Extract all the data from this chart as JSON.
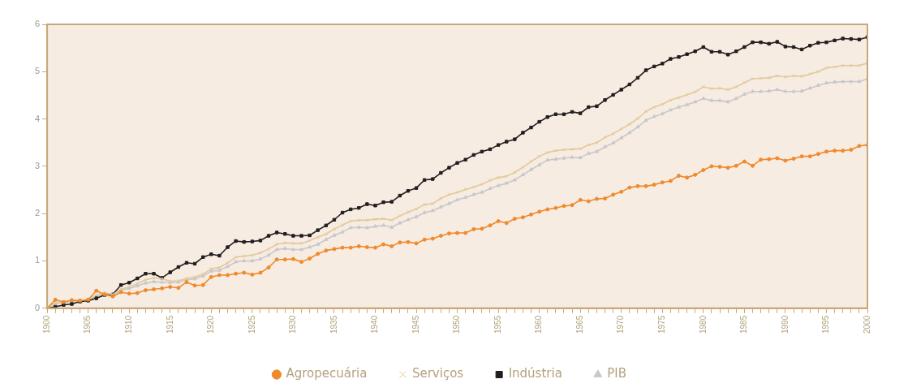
{
  "chart_data": {
    "type": "line",
    "legend": "bottom",
    "grid": false,
    "x": [
      1900,
      1901,
      1902,
      1903,
      1904,
      1905,
      1906,
      1907,
      1908,
      1909,
      1910,
      1911,
      1912,
      1913,
      1914,
      1915,
      1916,
      1917,
      1918,
      1919,
      1920,
      1921,
      1922,
      1923,
      1924,
      1925,
      1926,
      1927,
      1928,
      1929,
      1930,
      1931,
      1932,
      1933,
      1934,
      1935,
      1936,
      1937,
      1938,
      1939,
      1940,
      1941,
      1942,
      1943,
      1944,
      1945,
      1946,
      1947,
      1948,
      1949,
      1950,
      1951,
      1952,
      1953,
      1954,
      1955,
      1956,
      1957,
      1958,
      1959,
      1960,
      1961,
      1962,
      1963,
      1964,
      1965,
      1966,
      1967,
      1968,
      1969,
      1970,
      1971,
      1972,
      1973,
      1974,
      1975,
      1976,
      1977,
      1978,
      1979,
      1980,
      1981,
      1982,
      1983,
      1984,
      1985,
      1986,
      1987,
      1988,
      1989,
      1990,
      1991,
      1992,
      1993,
      1994,
      1995,
      1996,
      1997,
      1998,
      1999,
      2000
    ],
    "xlim": [
      1900,
      2000
    ],
    "xticks": [
      1900,
      {
        "value": 1901,
        "label": null
      },
      {
        "value": 1902,
        "label": null
      },
      {
        "value": 1903,
        "label": null
      },
      {
        "value": 1904,
        "label": null
      },
      1905,
      {
        "value": 1906,
        "label": null
      },
      {
        "value": 1907,
        "label": null
      },
      {
        "value": 1908,
        "label": null
      },
      {
        "value": 1909,
        "label": null
      },
      1910,
      {
        "value": 1911,
        "label": null
      },
      {
        "value": 1912,
        "label": null
      },
      {
        "value": 1913,
        "label": null
      },
      {
        "value": 1914,
        "label": null
      },
      1915,
      {
        "value": 1916,
        "label": null
      },
      {
        "value": 1917,
        "label": null
      },
      {
        "value": 1918,
        "label": null
      },
      {
        "value": 1919,
        "label": null
      },
      1920,
      {
        "value": 1921,
        "label": null
      },
      {
        "value": 1922,
        "label": null
      },
      {
        "value": 1923,
        "label": null
      },
      {
        "value": 1924,
        "label": null
      },
      1925,
      {
        "value": 1926,
        "label": null
      },
      {
        "value": 1927,
        "label": null
      },
      {
        "value": 1928,
        "label": null
      },
      {
        "value": 1929,
        "label": null
      },
      1930,
      {
        "value": 1931,
        "label": null
      },
      {
        "value": 1932,
        "label": null
      },
      {
        "value": 1933,
        "label": null
      },
      {
        "value": 1934,
        "label": null
      },
      1935,
      {
        "value": 1936,
        "label": null
      },
      {
        "value": 1937,
        "label": null
      },
      {
        "value": 1938,
        "label": null
      },
      {
        "value": 1939,
        "label": null
      },
      1940,
      {
        "value": 1941,
        "label": null
      },
      {
        "value": 1942,
        "label": null
      },
      {
        "value": 1943,
        "label": null
      },
      {
        "value": 1944,
        "label": null
      },
      1945,
      {
        "value": 1946,
        "label": null
      },
      {
        "value": 1947,
        "label": null
      },
      {
        "value": 1948,
        "label": null
      },
      {
        "value": 1949,
        "label": null
      },
      1950,
      {
        "value": 1951,
        "label": null
      },
      {
        "value": 1952,
        "label": null
      },
      {
        "value": 1953,
        "label": null
      },
      {
        "value": 1954,
        "label": null
      },
      1955,
      {
        "value": 1956,
        "label": null
      },
      {
        "value": 1957,
        "label": null
      },
      {
        "value": 1958,
        "label": null
      },
      {
        "value": 1959,
        "label": null
      },
      1960,
      {
        "value": 1961,
        "label": null
      },
      {
        "value": 1962,
        "label": null
      },
      {
        "value": 1963,
        "label": null
      },
      {
        "value": 1964,
        "label": null
      },
      1965,
      {
        "value": 1966,
        "label": null
      },
      {
        "value": 1967,
        "label": null
      },
      {
        "value": 1968,
        "label": null
      },
      {
        "value": 1969,
        "label": null
      },
      1970,
      {
        "value": 1971,
        "label": null
      },
      {
        "value": 1972,
        "label": null
      },
      {
        "value": 1973,
        "label": null
      },
      {
        "value": 1974,
        "label": null
      },
      1975,
      {
        "value": 1976,
        "label": null
      },
      {
        "value": 1977,
        "label": null
      },
      {
        "value": 1978,
        "label": null
      },
      {
        "value": 1979,
        "label": null
      },
      1980,
      {
        "value": 1981,
        "label": null
      },
      {
        "value": 1982,
        "label": null
      },
      {
        "value": 1983,
        "label": null
      },
      {
        "value": 1984,
        "label": null
      },
      1985,
      {
        "value": 1986,
        "label": null
      },
      {
        "value": 1987,
        "label": null
      },
      {
        "value": 1988,
        "label": null
      },
      {
        "value": 1989,
        "label": null
      },
      1990,
      {
        "value": 1991,
        "label": null
      },
      {
        "value": 1992,
        "label": null
      },
      {
        "value": 1993,
        "label": null
      },
      {
        "value": 1994,
        "label": null
      },
      1995,
      {
        "value": 1996,
        "label": null
      },
      {
        "value": 1997,
        "label": null
      },
      {
        "value": 1998,
        "label": null
      },
      {
        "value": 1999,
        "label": null
      },
      2000
    ],
    "ylim": [
      0,
      6
    ],
    "yticks": [
      0,
      1,
      2,
      3,
      4,
      5,
      6
    ],
    "series": [
      {
        "name": "Agropecuária",
        "color": "#f08a2c",
        "marker": "circle",
        "values": [
          0,
          0.18,
          0.13,
          0.17,
          0.16,
          0.18,
          0.37,
          0.29,
          0.25,
          0.34,
          0.31,
          0.32,
          0.38,
          0.4,
          0.42,
          0.45,
          0.43,
          0.55,
          0.48,
          0.49,
          0.66,
          0.7,
          0.7,
          0.73,
          0.75,
          0.71,
          0.75,
          0.86,
          1.03,
          1.03,
          1.04,
          0.98,
          1.05,
          1.15,
          1.22,
          1.25,
          1.28,
          1.28,
          1.31,
          1.29,
          1.28,
          1.35,
          1.31,
          1.39,
          1.4,
          1.37,
          1.45,
          1.47,
          1.53,
          1.58,
          1.59,
          1.59,
          1.67,
          1.68,
          1.75,
          1.84,
          1.8,
          1.89,
          1.92,
          1.98,
          2.04,
          2.09,
          2.12,
          2.16,
          2.18,
          2.29,
          2.26,
          2.31,
          2.32,
          2.4,
          2.46,
          2.55,
          2.58,
          2.58,
          2.61,
          2.66,
          2.69,
          2.8,
          2.76,
          2.82,
          2.92,
          3.0,
          2.99,
          2.97,
          3.01,
          3.1,
          3.01,
          3.14,
          3.15,
          3.17,
          3.12,
          3.16,
          3.21,
          3.21,
          3.26,
          3.31,
          3.33,
          3.33,
          3.35,
          3.43,
          3.45
        ]
      },
      {
        "name": "Serviços",
        "color": "#e2c99a",
        "marker": "cross",
        "values": [
          0,
          0.12,
          0.14,
          0.16,
          0.17,
          0.18,
          0.28,
          0.33,
          0.29,
          0.4,
          0.45,
          0.52,
          0.6,
          0.64,
          0.62,
          0.57,
          0.58,
          0.63,
          0.66,
          0.72,
          0.83,
          0.86,
          0.96,
          1.08,
          1.1,
          1.12,
          1.17,
          1.25,
          1.35,
          1.38,
          1.37,
          1.37,
          1.43,
          1.5,
          1.57,
          1.67,
          1.76,
          1.84,
          1.86,
          1.86,
          1.88,
          1.89,
          1.86,
          1.95,
          2.03,
          2.1,
          2.19,
          2.21,
          2.32,
          2.4,
          2.45,
          2.51,
          2.56,
          2.62,
          2.7,
          2.76,
          2.79,
          2.87,
          2.98,
          3.1,
          3.21,
          3.29,
          3.33,
          3.35,
          3.36,
          3.37,
          3.45,
          3.5,
          3.61,
          3.69,
          3.79,
          3.89,
          4.01,
          4.16,
          4.25,
          4.31,
          4.4,
          4.45,
          4.51,
          4.57,
          4.68,
          4.64,
          4.65,
          4.62,
          4.68,
          4.77,
          4.85,
          4.86,
          4.87,
          4.91,
          4.89,
          4.91,
          4.9,
          4.95,
          5.0,
          5.08,
          5.1,
          5.13,
          5.13,
          5.13,
          5.18
        ]
      },
      {
        "name": "Indústria",
        "color": "#231f20",
        "marker": "square",
        "values": [
          0,
          0.03,
          0.07,
          0.09,
          0.14,
          0.16,
          0.21,
          0.28,
          0.29,
          0.49,
          0.54,
          0.63,
          0.73,
          0.73,
          0.64,
          0.76,
          0.87,
          0.96,
          0.94,
          1.08,
          1.14,
          1.11,
          1.29,
          1.42,
          1.4,
          1.41,
          1.43,
          1.53,
          1.6,
          1.57,
          1.53,
          1.53,
          1.54,
          1.65,
          1.75,
          1.87,
          2.02,
          2.09,
          2.12,
          2.2,
          2.17,
          2.24,
          2.25,
          2.38,
          2.48,
          2.54,
          2.71,
          2.73,
          2.86,
          2.97,
          3.07,
          3.14,
          3.24,
          3.31,
          3.36,
          3.45,
          3.52,
          3.57,
          3.71,
          3.82,
          3.94,
          4.04,
          4.1,
          4.1,
          4.15,
          4.12,
          4.25,
          4.27,
          4.4,
          4.51,
          4.62,
          4.73,
          4.87,
          5.03,
          5.11,
          5.17,
          5.27,
          5.31,
          5.37,
          5.43,
          5.52,
          5.42,
          5.42,
          5.36,
          5.43,
          5.52,
          5.62,
          5.62,
          5.59,
          5.63,
          5.53,
          5.52,
          5.47,
          5.55,
          5.61,
          5.62,
          5.66,
          5.7,
          5.69,
          5.68,
          5.73
        ]
      },
      {
        "name": "PIB",
        "color": "#c8c8cc",
        "marker": "triangle",
        "values": [
          0,
          0.1,
          0.12,
          0.14,
          0.16,
          0.17,
          0.25,
          0.3,
          0.28,
          0.38,
          0.42,
          0.47,
          0.53,
          0.56,
          0.55,
          0.54,
          0.55,
          0.6,
          0.62,
          0.68,
          0.78,
          0.8,
          0.88,
          0.98,
          1.0,
          1.0,
          1.04,
          1.12,
          1.24,
          1.26,
          1.24,
          1.24,
          1.29,
          1.35,
          1.45,
          1.54,
          1.61,
          1.7,
          1.71,
          1.7,
          1.73,
          1.75,
          1.71,
          1.8,
          1.87,
          1.93,
          2.02,
          2.06,
          2.14,
          2.21,
          2.29,
          2.34,
          2.4,
          2.45,
          2.53,
          2.59,
          2.64,
          2.71,
          2.82,
          2.93,
          3.03,
          3.13,
          3.15,
          3.17,
          3.19,
          3.18,
          3.27,
          3.31,
          3.41,
          3.49,
          3.6,
          3.71,
          3.83,
          3.97,
          4.05,
          4.11,
          4.19,
          4.25,
          4.3,
          4.36,
          4.43,
          4.39,
          4.39,
          4.36,
          4.43,
          4.52,
          4.58,
          4.58,
          4.59,
          4.62,
          4.58,
          4.58,
          4.59,
          4.65,
          4.71,
          4.76,
          4.78,
          4.79,
          4.79,
          4.79,
          4.85
        ]
      }
    ]
  }
}
